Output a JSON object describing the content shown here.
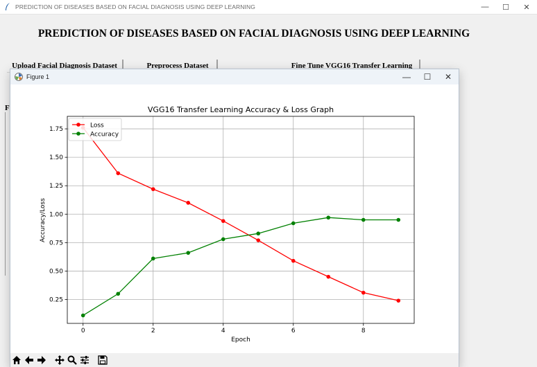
{
  "main_window": {
    "title": "PREDICTION OF DISEASES BASED ON FACIAL DIAGNOSIS USING DEEP LEARNING",
    "heading": "PREDICTION OF DISEASES BASED ON FACIAL DIAGNOSIS USING DEEP LEARNING",
    "buttons": {
      "upload": "Upload Facial Diagnosis Dataset",
      "preprocess": "Preprocess Dataset",
      "finetune": "Fine Tune VGG16 Transfer Learning"
    },
    "side_label": "Fi",
    "controls": {
      "minimize": "—",
      "maximize": "☐",
      "close": "✕"
    }
  },
  "figure_window": {
    "title": "Figure 1",
    "controls": {
      "minimize": "—",
      "maximize": "☐",
      "close": "✕"
    },
    "toolbar": [
      "home-icon",
      "back-icon",
      "forward-icon",
      "pan-icon",
      "zoom-icon",
      "configure-icon",
      "save-icon"
    ]
  },
  "chart_data": {
    "type": "line",
    "title": "VGG16 Transfer Learning Accuracy & Loss Graph",
    "xlabel": "Epoch",
    "ylabel": "Accuracy/Loss",
    "x": [
      0,
      1,
      2,
      3,
      4,
      5,
      6,
      7,
      8,
      9
    ],
    "xlim": [
      -0.45,
      9.45
    ],
    "ylim": [
      0.04,
      1.86
    ],
    "xticks": [
      0,
      2,
      4,
      6,
      8
    ],
    "yticks": [
      0.25,
      0.5,
      0.75,
      1.0,
      1.25,
      1.5,
      1.75
    ],
    "xtick_labels": [
      "0",
      "2",
      "4",
      "6",
      "8"
    ],
    "ytick_labels": [
      "0.25",
      "0.50",
      "0.75",
      "1.00",
      "1.25",
      "1.50",
      "1.75"
    ],
    "grid": true,
    "legend_position": "upper left",
    "series": [
      {
        "name": "Loss",
        "color": "#ff0000",
        "values": [
          1.76,
          1.36,
          1.22,
          1.1,
          0.94,
          0.77,
          0.59,
          0.45,
          0.31,
          0.24
        ]
      },
      {
        "name": "Accuracy",
        "color": "#008000",
        "values": [
          0.11,
          0.3,
          0.61,
          0.66,
          0.78,
          0.83,
          0.92,
          0.97,
          0.95,
          0.95
        ]
      }
    ]
  }
}
